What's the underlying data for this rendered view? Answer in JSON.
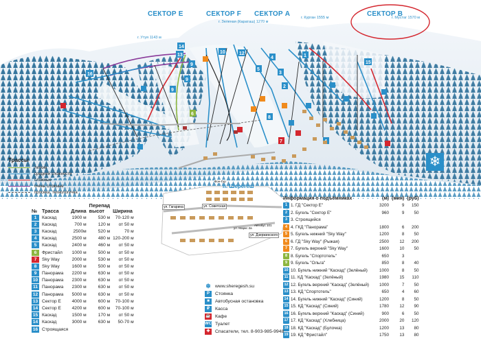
{
  "sectors": {
    "e": "СЕКТОР Е",
    "f": "СЕКТОР F",
    "a": "СЕКТОР А",
    "b": "СЕКТОР В"
  },
  "peaks": {
    "utug": "г. Утуя 1143 м",
    "zelenaya": "г. Зеленая (Караташ) 1270 м",
    "kurgan": "г. Курган 1555 м",
    "mustag": "г. Мустаг 1570 м"
  },
  "town_label": "п. Шерегеш",
  "map_labels": {
    "gagarina": "ул. Гагарина",
    "sovetskaya": "ул. Советская",
    "dzerzhinskogo": "ул. Дзержинского",
    "marks": "ул. Маркс 2а",
    "avtobus": "Автобус 101",
    "fon_gur": "Фон-Гур"
  },
  "legend": {
    "title": "Трассы",
    "items": [
      {
        "label": "легкие",
        "color": "#8db63f"
      },
      {
        "label": "средней сложности",
        "color": "#2a8fc9"
      },
      {
        "label": "сложные",
        "color": "#d4262e"
      },
      {
        "label": "очень сложные",
        "color": "#8a3a9a"
      },
      {
        "label": "просека, технологичка",
        "color": "#555555"
      }
    ]
  },
  "trails": {
    "headers": {
      "num": "№",
      "name": "Трасса",
      "length": "Длина",
      "drop": "Перепад высот",
      "width": "Ширина"
    },
    "rows": [
      {
        "num": "1",
        "color": "#2a8fc9",
        "name": "Каскад",
        "length": "1900 м",
        "drop": "530 м",
        "width": "70-120 м"
      },
      {
        "num": "2",
        "color": "#2a8fc9",
        "name": "Каскад",
        "length": "700 м",
        "drop": "120 м",
        "width": "от 50 м"
      },
      {
        "num": "3",
        "color": "#2a8fc9",
        "name": "Каскад",
        "length": "2500м",
        "drop": "520 м",
        "width": "70 м"
      },
      {
        "num": "4",
        "color": "#2a8fc9",
        "name": "Каскад",
        "length": "2500 м",
        "drop": "480 м",
        "width": "120-200 м"
      },
      {
        "num": "5",
        "color": "#2a8fc9",
        "name": "Каскад",
        "length": "2400 м",
        "drop": "460 м",
        "width": "от 50 м"
      },
      {
        "num": "6",
        "color": "#8db63f",
        "name": "Фристайл",
        "length": "1000 м",
        "drop": "500 м",
        "width": "от 50 м"
      },
      {
        "num": "7",
        "color": "#d4262e",
        "name": "Sky Way",
        "length": "2000 м",
        "drop": "530 м",
        "width": "от 50 м"
      },
      {
        "num": "8",
        "color": "#2a8fc9",
        "name": "Sky Way",
        "length": "1600 м",
        "drop": "500 м",
        "width": "от 50 м"
      },
      {
        "num": "9",
        "color": "#2a8fc9",
        "name": "Панорама",
        "length": "2200 м",
        "drop": "630 м",
        "width": "от 50 м"
      },
      {
        "num": "10",
        "color": "#2a8fc9",
        "name": "Панорама",
        "length": "2300 м",
        "drop": "630 м",
        "width": "от 50 м"
      },
      {
        "num": "11",
        "color": "#2a8fc9",
        "name": "Панорама",
        "length": "2300 м",
        "drop": "630 м",
        "width": "от 50 м"
      },
      {
        "num": "12",
        "color": "#2a8fc9",
        "name": "Панорама",
        "length": "5000 м",
        "drop": "630 м",
        "width": "от 50 м"
      },
      {
        "num": "13",
        "color": "#2a8fc9",
        "name": "Сектор Е",
        "length": "4000 м",
        "drop": "600 м",
        "width": "70-100 м"
      },
      {
        "num": "14",
        "color": "#2a8fc9",
        "name": "Сектор Е",
        "length": "4200 м",
        "drop": "600 м",
        "width": "70-100 м"
      },
      {
        "num": "15",
        "color": "#2a8fc9",
        "name": "Каскад",
        "length": "1500 м",
        "drop": "170 м",
        "width": "от 50 м"
      },
      {
        "num": "14",
        "color": "#2a8fc9",
        "name": "Каскад",
        "length": "3000 м",
        "drop": "630 м",
        "width": "50-70 м"
      },
      {
        "num": "16",
        "color": "#2a8fc9",
        "name": "Строящаяся",
        "length": "",
        "drop": "",
        "width": ""
      }
    ]
  },
  "lifts": {
    "headers": {
      "title": "Информация о подъёмниках",
      "m": "(м)",
      "min": "(мин)",
      "rub": "(руб)"
    },
    "rows": [
      {
        "icon": "1",
        "color": "#2a8fc9",
        "name": "1. ГД \"Сектор Е\"",
        "m": "3200",
        "min": "9",
        "rub": "150"
      },
      {
        "icon": "2",
        "color": "#2a8fc9",
        "name": "2. Бугель \"Сектор Е\"",
        "m": "960",
        "min": "9",
        "rub": "50"
      },
      {
        "icon": "3",
        "color": "#2a8fc9",
        "name": "3. Строящийся",
        "m": "",
        "min": "",
        "rub": ""
      },
      {
        "icon": "4",
        "color": "#f08a1c",
        "name": "4. ГКД \"Панорама\"",
        "m": "1800",
        "min": "6",
        "rub": "200"
      },
      {
        "icon": "5",
        "color": "#f08a1c",
        "name": "5. Бугель нижний \"Sky Way\"",
        "m": "1200",
        "min": "8",
        "rub": "50"
      },
      {
        "icon": "6",
        "color": "#f08a1c",
        "name": "6. ГД \"Sky Way\" (Рыжая)",
        "m": "2500",
        "min": "12",
        "rub": "200"
      },
      {
        "icon": "7",
        "color": "#f08a1c",
        "name": "7. Бугель верхний \"Sky Way\"",
        "m": "1600",
        "min": "10",
        "rub": "50"
      },
      {
        "icon": "8",
        "color": "#8db63f",
        "name": "8. Бугель \"Спортотель\"",
        "m": "650",
        "min": "3",
        "rub": ""
      },
      {
        "icon": "9",
        "color": "#8db63f",
        "name": "9. Бугель \"Ольга\"",
        "m": "850",
        "min": "8",
        "rub": "40"
      },
      {
        "icon": "10",
        "color": "#2a8fc9",
        "name": "10. Бугель нижний \"Каскад\" (Зелёный)",
        "m": "1000",
        "min": "8",
        "rub": "50"
      },
      {
        "icon": "11",
        "color": "#2a8fc9",
        "name": "11. КД \"Каскад\" (Зелёный)",
        "m": "1980",
        "min": "15",
        "rub": "110"
      },
      {
        "icon": "12",
        "color": "#2a8fc9",
        "name": "12. Бугель верхний \"Каскад\" (Зелёный)",
        "m": "1000",
        "min": "7",
        "rub": "50"
      },
      {
        "icon": "13",
        "color": "#2a8fc9",
        "name": "13. КД \"Спортотель\"",
        "m": "650",
        "min": "4",
        "rub": "60"
      },
      {
        "icon": "14",
        "color": "#2a8fc9",
        "name": "14. Бугель нижний \"Каскад\" (Синий)",
        "m": "1200",
        "min": "8",
        "rub": "50"
      },
      {
        "icon": "15",
        "color": "#2a8fc9",
        "name": "15. КД \"Каскад\" (Синий)",
        "m": "1780",
        "min": "12",
        "rub": "90"
      },
      {
        "icon": "16",
        "color": "#2a8fc9",
        "name": "16. Бугель верхний \"Каскад\" (Синий)",
        "m": "900",
        "min": "6",
        "rub": "50"
      },
      {
        "icon": "17",
        "color": "#2a8fc9",
        "name": "17. КД \"Каскад\" (Хлебница)",
        "m": "2000",
        "min": "20",
        "rub": "120"
      },
      {
        "icon": "18",
        "color": "#2a8fc9",
        "name": "18. КД \"Каскад\" (Булочка)",
        "m": "1200",
        "min": "13",
        "rub": "80"
      },
      {
        "icon": "19",
        "color": "#2a8fc9",
        "name": "19. КД \"Фристайл\"",
        "m": "1750",
        "min": "13",
        "rub": "80"
      }
    ]
  },
  "info": {
    "website": "www.sheregesh.su",
    "items": [
      {
        "label": "Стоянка",
        "glyph": "P",
        "color": "#2a8fc9"
      },
      {
        "label": "Автобусная остановка",
        "glyph": "■",
        "color": "#2a8fc9"
      },
      {
        "label": "Касса",
        "glyph": "₽",
        "color": "#2a8fc9"
      },
      {
        "label": "Кафе",
        "glyph": "☕",
        "color": "#d4262e"
      },
      {
        "label": "Туалет",
        "glyph": "WC",
        "color": "#2a8fc9"
      },
      {
        "label": "Спасатели, тел. 8-903-985-9948",
        "glyph": "✚",
        "color": "#d4262e"
      }
    ]
  }
}
